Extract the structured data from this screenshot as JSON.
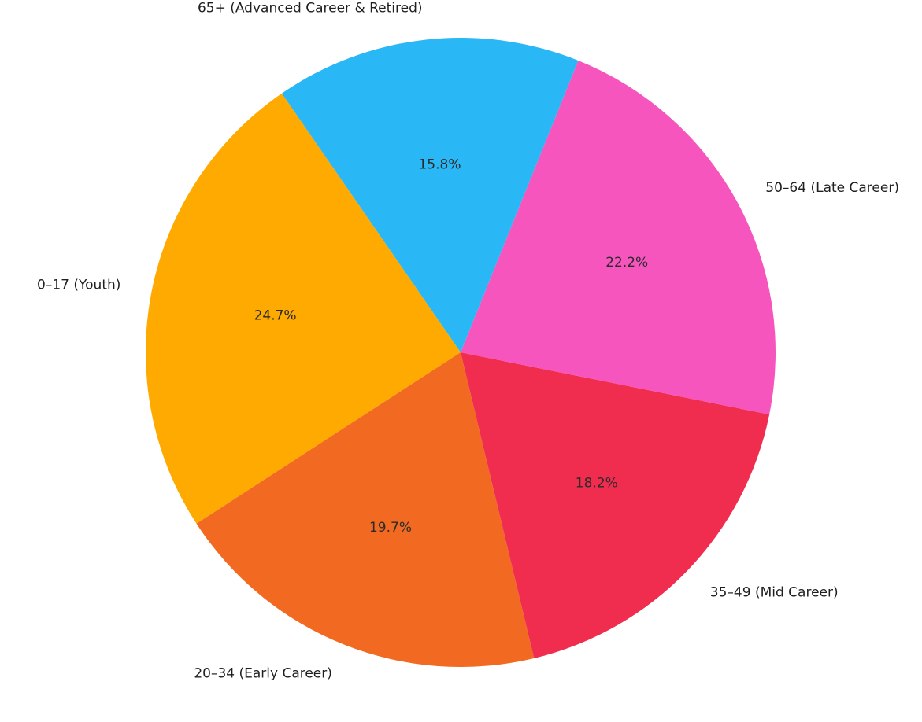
{
  "chart_data": {
    "type": "pie",
    "title": "",
    "start_angle_deg": 124.6,
    "direction": "counterclockwise",
    "slices": [
      {
        "label": "0–17 (Youth)",
        "value": 24.7,
        "pct_label": "24.7%",
        "color": "#FFAA00"
      },
      {
        "label": "20–34 (Early Career)",
        "value": 19.7,
        "pct_label": "19.7%",
        "color": "#F26A21"
      },
      {
        "label": "35–49 (Mid Career)",
        "value": 18.2,
        "pct_label": "18.2%",
        "color": "#F02D4E"
      },
      {
        "label": "50–64 (Late Career)",
        "value": 22.2,
        "pct_label": "22.2%",
        "color": "#F655BE"
      },
      {
        "label": "65+ (Advanced Career & Retired)",
        "value": 15.8,
        "pct_label": "15.8%",
        "color": "#29B7F5"
      }
    ],
    "legend": "none"
  }
}
